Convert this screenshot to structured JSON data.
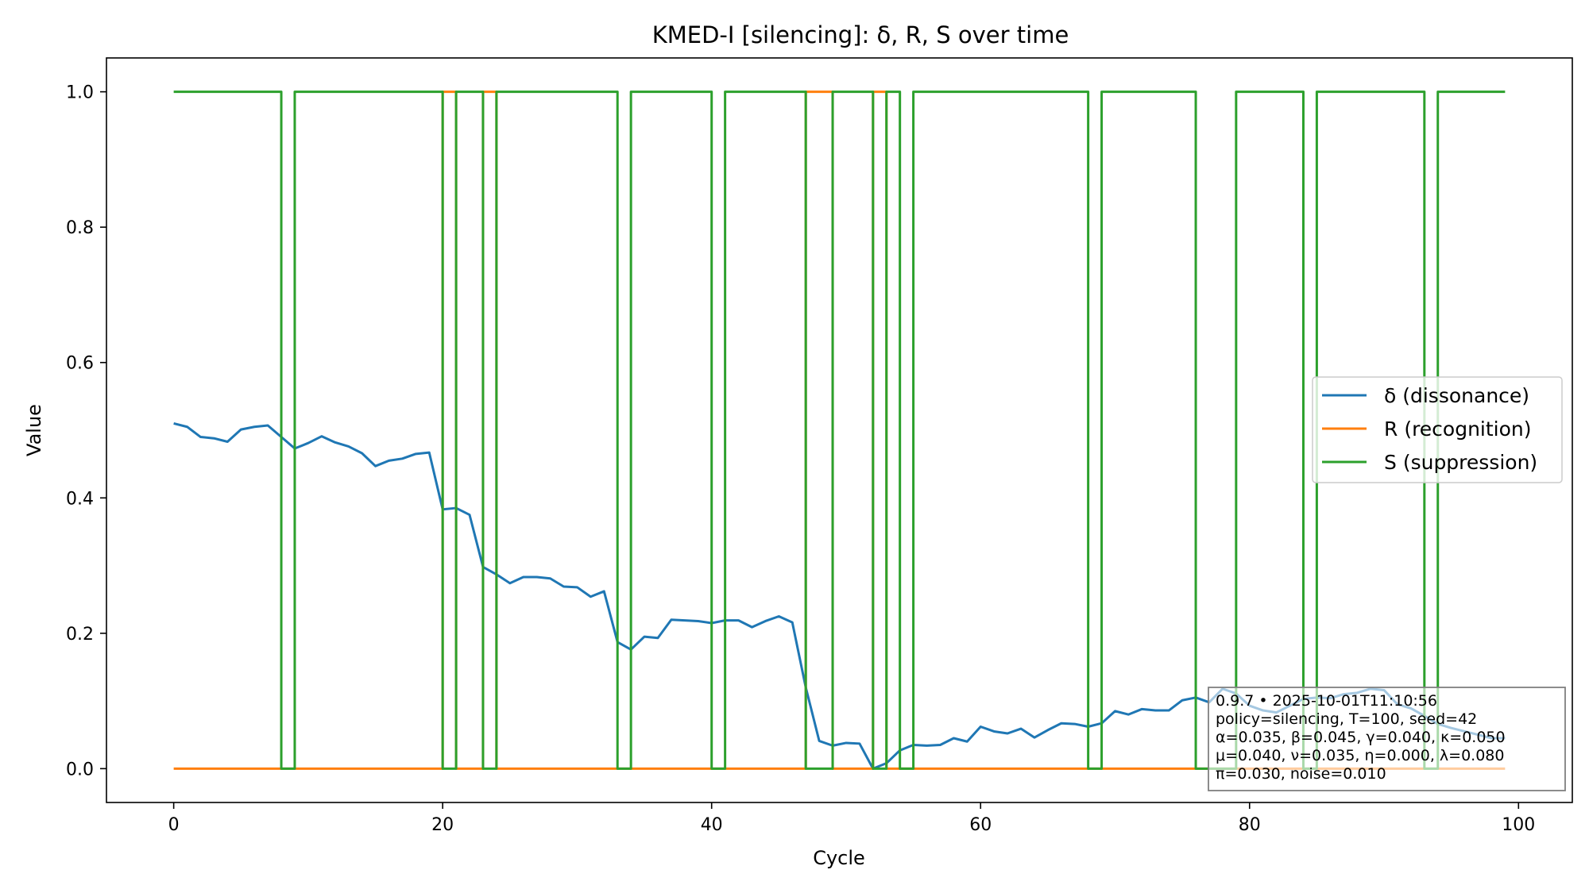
{
  "chart_data": {
    "type": "line",
    "title": "KMED-I [silencing]: δ, R, S over time",
    "xlabel": "Cycle",
    "ylabel": "Value",
    "xlim": [
      -5,
      104
    ],
    "ylim": [
      -0.05,
      1.05
    ],
    "xticks": [
      0,
      20,
      40,
      60,
      80,
      100
    ],
    "yticks": [
      0.0,
      0.2,
      0.4,
      0.6,
      0.8,
      1.0
    ],
    "xtick_labels": [
      "0",
      "20",
      "40",
      "60",
      "80",
      "100"
    ],
    "ytick_labels": [
      "0.0",
      "0.2",
      "0.4",
      "0.6",
      "0.8",
      "1.0"
    ],
    "grid": false,
    "legend_position": "center-right",
    "series": [
      {
        "name": "δ (dissonance)",
        "color": "#1f77b4",
        "step": false,
        "x": [
          0,
          1,
          2,
          3,
          4,
          5,
          6,
          7,
          8,
          9,
          10,
          11,
          12,
          13,
          14,
          15,
          16,
          17,
          18,
          19,
          20,
          21,
          22,
          23,
          24,
          25,
          26,
          27,
          28,
          29,
          30,
          31,
          32,
          33,
          34,
          35,
          36,
          37,
          38,
          39,
          40,
          41,
          42,
          43,
          44,
          45,
          46,
          47,
          48,
          49,
          50,
          51,
          52,
          53,
          54,
          55,
          56,
          57,
          58,
          59,
          60,
          61,
          62,
          63,
          64,
          65,
          66,
          67,
          68,
          69,
          70,
          71,
          72,
          73,
          74,
          75,
          76,
          77,
          78,
          79,
          80,
          81,
          82,
          83,
          84,
          85,
          86,
          87,
          88,
          89,
          90,
          91,
          92,
          93,
          94,
          95,
          96,
          97,
          98,
          99
        ],
        "values": [
          0.51,
          0.505,
          0.49,
          0.488,
          0.483,
          0.501,
          0.505,
          0.507,
          0.49,
          0.473,
          0.481,
          0.491,
          0.482,
          0.476,
          0.466,
          0.447,
          0.455,
          0.458,
          0.465,
          0.467,
          0.383,
          0.385,
          0.375,
          0.298,
          0.287,
          0.274,
          0.283,
          0.283,
          0.281,
          0.269,
          0.268,
          0.254,
          0.262,
          0.187,
          0.176,
          0.195,
          0.193,
          0.22,
          0.219,
          0.218,
          0.215,
          0.219,
          0.219,
          0.209,
          0.218,
          0.225,
          0.216,
          0.12,
          0.041,
          0.034,
          0.038,
          0.037,
          0.0,
          0.008,
          0.027,
          0.035,
          0.034,
          0.035,
          0.045,
          0.04,
          0.062,
          0.055,
          0.052,
          0.059,
          0.046,
          0.057,
          0.067,
          0.066,
          0.062,
          0.067,
          0.085,
          0.08,
          0.088,
          0.086,
          0.086,
          0.101,
          0.105,
          0.098,
          0.118,
          0.111,
          0.093,
          0.086,
          0.083,
          0.093,
          0.103,
          0.105,
          0.104,
          0.11,
          0.112,
          0.118,
          0.116,
          0.095,
          0.089,
          0.078,
          0.066,
          0.06,
          0.055,
          0.05,
          0.045,
          0.045
        ]
      },
      {
        "name": "R (recognition)",
        "color": "#ff7f0e",
        "step": true,
        "x": [
          0,
          20,
          21,
          23,
          24,
          47,
          49,
          52,
          53,
          54,
          99
        ],
        "values": [
          0,
          1,
          0,
          1,
          0,
          1,
          0,
          1,
          0,
          0,
          0
        ]
      },
      {
        "name": "S (suppression)",
        "color": "#2ca02c",
        "step": true,
        "x": [
          0,
          8,
          9,
          20,
          21,
          23,
          24,
          33,
          34,
          40,
          41,
          47,
          49,
          52,
          53,
          54,
          55,
          68,
          69,
          76,
          79,
          84,
          85,
          93,
          94,
          99
        ],
        "values": [
          1,
          0,
          1,
          0,
          1,
          0,
          1,
          0,
          1,
          0,
          1,
          0,
          1,
          0,
          1,
          0,
          1,
          0,
          1,
          0,
          1,
          0,
          1,
          0,
          1,
          1
        ]
      }
    ],
    "annotation_lines": [
      "0.9.7  •  2025-10-01T11:10:56",
      "policy=silencing, T=100, seed=42",
      "α=0.035, β=0.045, γ=0.040, κ=0.050",
      "μ=0.040, ν=0.035, η=0.000, λ=0.080",
      "π=0.030, noise=0.010"
    ]
  }
}
